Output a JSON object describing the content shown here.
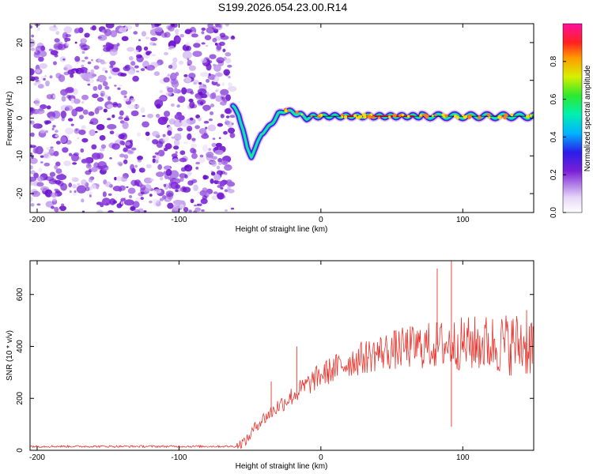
{
  "title": "S199.2026.054.23.00.R14",
  "chart_data": [
    {
      "type": "heatmap",
      "name": "spectrogram",
      "xlabel": "Height of straight line (km)",
      "ylabel": "Frequency (Hz)",
      "xlim": [
        -205,
        150
      ],
      "ylim": [
        -25,
        25
      ],
      "xticks": [
        -200,
        -100,
        0,
        100
      ],
      "yticks": [
        -20,
        -10,
        0,
        10,
        20
      ],
      "noise_region_x": [
        -205,
        -62
      ],
      "signal_trace": [
        {
          "x": -62,
          "y": 3
        },
        {
          "x": -58,
          "y": 1
        },
        {
          "x": -55,
          "y": -3
        },
        {
          "x": -52,
          "y": -8
        },
        {
          "x": -49,
          "y": -10
        },
        {
          "x": -46,
          "y": -8
        },
        {
          "x": -42,
          "y": -4
        },
        {
          "x": -38,
          "y": -3
        },
        {
          "x": -34,
          "y": -1
        },
        {
          "x": -30,
          "y": 1
        },
        {
          "x": -25,
          "y": 2
        },
        {
          "x": -20,
          "y": 1.5
        },
        {
          "x": -15,
          "y": 1
        },
        {
          "x": -10,
          "y": 0
        },
        {
          "x": -5,
          "y": 0.5
        },
        {
          "x": 0,
          "y": 0.5
        },
        {
          "x": 150,
          "y": 0.5
        }
      ],
      "peak_band_x": [
        15,
        55
      ],
      "colorbar": {
        "label": "Normalized spectral amplitude",
        "ticks": [
          "0.0",
          "0.2",
          "0.4",
          "0.6",
          "0.8"
        ],
        "range": [
          0,
          1
        ]
      }
    },
    {
      "type": "line",
      "name": "snr",
      "xlabel": "Height of straight line (km)",
      "ylabel": "SNR (10 * v/v)",
      "xlim": [
        -205,
        150
      ],
      "ylim": [
        0,
        730
      ],
      "xticks": [
        -200,
        -100,
        0,
        100
      ],
      "yticks": [
        0,
        200,
        400,
        600
      ],
      "series_color": "#e8352e",
      "trend": [
        {
          "x": -205,
          "y": 15
        },
        {
          "x": -60,
          "y": 15
        },
        {
          "x": -52,
          "y": 40
        },
        {
          "x": -45,
          "y": 100
        },
        {
          "x": -30,
          "y": 170
        },
        {
          "x": -15,
          "y": 230
        },
        {
          "x": 0,
          "y": 290
        },
        {
          "x": 20,
          "y": 340
        },
        {
          "x": 40,
          "y": 375
        },
        {
          "x": 60,
          "y": 395
        },
        {
          "x": 80,
          "y": 405
        },
        {
          "x": 100,
          "y": 410
        },
        {
          "x": 150,
          "y": 410
        }
      ],
      "spikes": [
        {
          "x": -35,
          "y": 265
        },
        {
          "x": -17,
          "y": 400
        },
        {
          "x": 82,
          "y": 700
        },
        {
          "x": 92,
          "y": 730
        },
        {
          "x": 92,
          "y": 90
        },
        {
          "x": 145,
          "y": 540
        }
      ]
    }
  ]
}
